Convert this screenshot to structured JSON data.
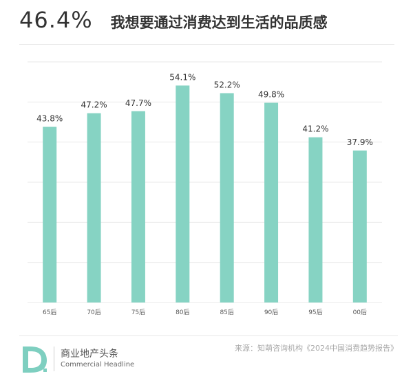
{
  "header": {
    "headline_value": "46.4%",
    "title": "我想要通过消费达到生活的品质感"
  },
  "chart_data": {
    "type": "bar",
    "categories": [
      "65后",
      "70后",
      "75后",
      "80后",
      "85后",
      "90后",
      "95后",
      "00后"
    ],
    "values": [
      43.8,
      47.2,
      47.7,
      54.1,
      52.2,
      49.8,
      41.2,
      37.9
    ],
    "value_labels": [
      "43.8%",
      "47.2%",
      "47.7%",
      "54.1%",
      "52.2%",
      "49.8%",
      "41.2%",
      "37.9%"
    ],
    "ylim": [
      0,
      60
    ],
    "grid": true,
    "bar_color": "#86d3c3"
  },
  "footer": {
    "brand_cn": "商业地产头条",
    "brand_en": "Commercial Headline",
    "source": "来源：知萌咨询机构《2024中国消费趋势报告》"
  },
  "colors": {
    "logo": "#7ecfc0",
    "grid": "#e9e9e9"
  }
}
